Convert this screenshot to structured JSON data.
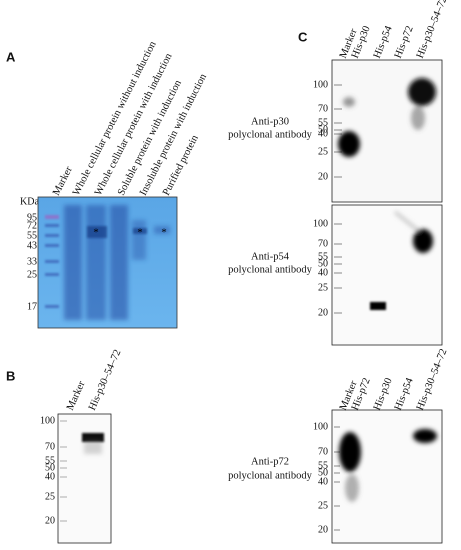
{
  "panels": {
    "A": {
      "label": "A",
      "lanes": [
        "Marker",
        "Whole cellular protein without induction",
        "Whole cellular protein with induction",
        "Soluble protein with induction",
        "Insoluble protein with induction",
        "Purified protein"
      ],
      "unit": "KDa",
      "markers": [
        95,
        72,
        55,
        43,
        33,
        25,
        17
      ],
      "asterisks": [
        "*",
        "*",
        "*"
      ]
    },
    "B": {
      "label": "B",
      "lanes": [
        "Marker",
        "His-p30–54–72"
      ],
      "markers": [
        100,
        70,
        55,
        50,
        40,
        25,
        20
      ]
    },
    "C": {
      "label": "C",
      "blots": [
        {
          "lanes": [
            "Marker",
            "His-p30",
            "His-p54",
            "His-p72",
            "His-p30–54–72"
          ],
          "antibody": [
            "Anti-p30",
            "polyclonal antibody"
          ],
          "markers": [
            100,
            70,
            55,
            50,
            40,
            25,
            20
          ]
        },
        {
          "antibody": [
            "Anti-p54",
            "polyclonal antibody"
          ],
          "markers": [
            100,
            70,
            55,
            50,
            40,
            25,
            20
          ]
        },
        {
          "lanes": [
            "Marker",
            "His-p72",
            "His-p30",
            "His-p54",
            "His-p30–54–72"
          ],
          "antibody": [
            "Anti-p72",
            "polyclonal antibody"
          ],
          "markers": [
            100,
            70,
            55,
            50,
            40,
            25,
            20
          ]
        }
      ]
    }
  }
}
